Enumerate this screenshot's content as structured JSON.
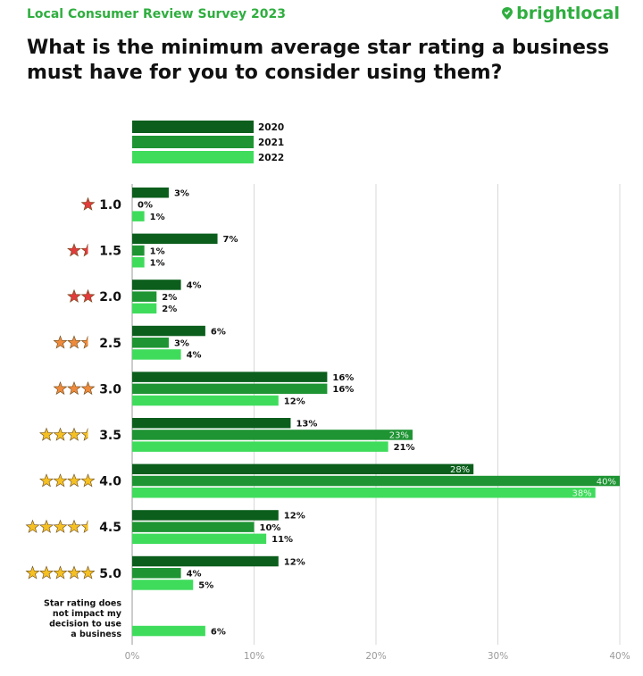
{
  "header": {
    "survey_label": "Local Consumer Review Survey 2023",
    "brand": "brightlocal",
    "title": "What is the minimum average star rating a business must have for you to consider using them?"
  },
  "colors": {
    "2020": "#0b5e1c",
    "2021": "#1e9433",
    "2022": "#3fdc5c",
    "star_red": "#e23b3b",
    "star_orange": "#ef8a3c",
    "star_yellow": "#f5c023",
    "brand": "#2fae3f"
  },
  "chart_data": {
    "type": "bar",
    "orientation": "horizontal",
    "series": [
      {
        "name": "2020",
        "values": [
          3,
          7,
          4,
          6,
          16,
          13,
          28,
          12,
          12,
          null
        ]
      },
      {
        "name": "2021",
        "values": [
          0,
          1,
          2,
          3,
          16,
          23,
          40,
          10,
          4,
          null
        ]
      },
      {
        "name": "2022",
        "values": [
          1,
          1,
          2,
          4,
          12,
          21,
          38,
          11,
          5,
          6
        ]
      }
    ],
    "categories": [
      {
        "label": "1.0",
        "stars": 1.0
      },
      {
        "label": "1.5",
        "stars": 1.5
      },
      {
        "label": "2.0",
        "stars": 2.0
      },
      {
        "label": "2.5",
        "stars": 2.5
      },
      {
        "label": "3.0",
        "stars": 3.0
      },
      {
        "label": "3.5",
        "stars": 3.5
      },
      {
        "label": "4.0",
        "stars": 4.0
      },
      {
        "label": "4.5",
        "stars": 4.5
      },
      {
        "label": "5.0",
        "stars": 5.0
      },
      {
        "label": "Star rating does not impact my decision to use a business",
        "stars": 0
      }
    ],
    "xlim": [
      0,
      40
    ],
    "xticks": [
      "0%",
      "10%",
      "20%",
      "30%",
      "40%"
    ],
    "grid": true,
    "legend_position": "top"
  }
}
